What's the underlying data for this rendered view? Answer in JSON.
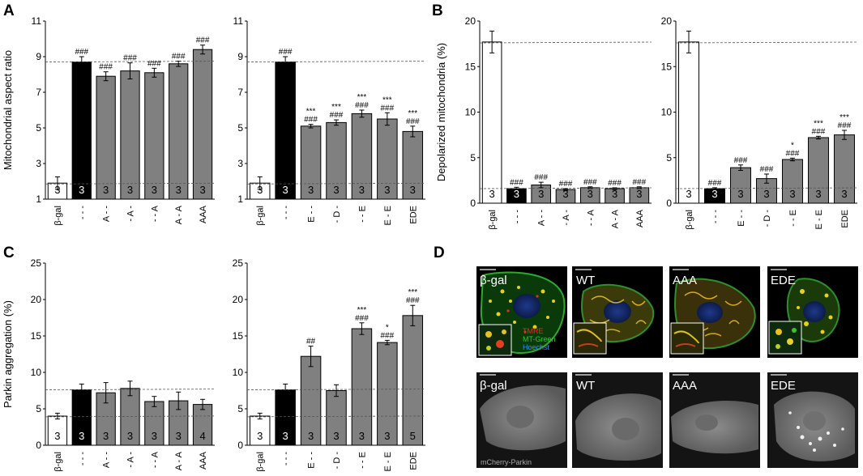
{
  "panel_letters": [
    "A",
    "B",
    "C",
    "D"
  ],
  "chart_data": [
    {
      "type": "bar",
      "panel": "A",
      "ylabel": "Mitochondrial  aspect ratio",
      "ylim": [
        1,
        11
      ],
      "yticks": [
        "1",
        "3",
        "5",
        "7",
        "9",
        "11"
      ],
      "categories": [
        "β-gal",
        "- - -",
        "A - -",
        "- A -",
        "- - A",
        "A - A",
        "AAA"
      ],
      "values": [
        1.9,
        8.7,
        7.9,
        8.2,
        8.1,
        8.6,
        9.4
      ],
      "errors": [
        0.35,
        0.3,
        0.25,
        0.45,
        0.25,
        0.15,
        0.25
      ],
      "fills": [
        "#ffffff",
        "#000000",
        "#808080",
        "#808080",
        "#808080",
        "#808080",
        "#808080"
      ],
      "n": [
        "3",
        "3",
        "3",
        "3",
        "3",
        "3",
        "3"
      ],
      "sig_top": [
        "",
        "",
        "",
        "",
        "",
        "",
        ""
      ],
      "sig_bottom": [
        "",
        "###",
        "###",
        "###",
        "###",
        "###",
        "###"
      ],
      "ref_lines": [
        8.7,
        1.85
      ]
    },
    {
      "type": "bar",
      "panel": "A",
      "ylabel": "",
      "ylim": [
        1,
        11
      ],
      "yticks": [
        "1",
        "3",
        "5",
        "7",
        "9",
        "11"
      ],
      "categories": [
        "β-gal",
        "- - -",
        "E - -",
        "- D -",
        "- - E",
        "E - E",
        "EDE"
      ],
      "values": [
        1.9,
        8.7,
        5.1,
        5.3,
        5.8,
        5.5,
        4.8
      ],
      "errors": [
        0.35,
        0.3,
        0.1,
        0.15,
        0.2,
        0.35,
        0.3
      ],
      "fills": [
        "#ffffff",
        "#000000",
        "#808080",
        "#808080",
        "#808080",
        "#808080",
        "#808080"
      ],
      "n": [
        "3",
        "3",
        "3",
        "3",
        "3",
        "3",
        "3"
      ],
      "sig_top": [
        "",
        "",
        "***",
        "***",
        "***",
        "***",
        "***"
      ],
      "sig_bottom": [
        "",
        "###",
        "###",
        "###",
        "###",
        "###",
        "###"
      ],
      "ref_lines": [
        8.7,
        1.85
      ]
    },
    {
      "type": "bar",
      "panel": "B",
      "ylabel": "Depolarized mitochondria (%)",
      "ylim": [
        0,
        20
      ],
      "yticks": [
        "0",
        "5",
        "10",
        "15",
        "20"
      ],
      "categories": [
        "β-gal",
        "- - -",
        "A - -",
        "- A -",
        "- - A",
        "A - A",
        "AAA"
      ],
      "values": [
        17.7,
        1.6,
        2.0,
        1.5,
        1.7,
        1.6,
        1.7
      ],
      "errors": [
        1.2,
        0.15,
        0.3,
        0.1,
        0.1,
        0.1,
        0.1
      ],
      "fills": [
        "#ffffff",
        "#000000",
        "#808080",
        "#808080",
        "#808080",
        "#808080",
        "#808080"
      ],
      "n": [
        "3",
        "3",
        "3",
        "3",
        "3",
        "3",
        "3"
      ],
      "sig_top": [
        "",
        "",
        "",
        "",
        "",
        "",
        ""
      ],
      "sig_bottom": [
        "",
        "###",
        "###",
        "###",
        "###",
        "###",
        "###"
      ],
      "ref_lines": [
        17.6,
        1.6
      ]
    },
    {
      "type": "bar",
      "panel": "B",
      "ylabel": "",
      "ylim": [
        0,
        20
      ],
      "yticks": [
        "0",
        "5",
        "10",
        "15",
        "20"
      ],
      "categories": [
        "β-gal",
        "- - -",
        "E - -",
        "- D -",
        "- - E",
        "E - E",
        "EDE"
      ],
      "values": [
        17.7,
        1.6,
        3.9,
        2.7,
        4.8,
        7.2,
        7.5
      ],
      "errors": [
        1.2,
        0.1,
        0.3,
        0.5,
        0.15,
        0.15,
        0.5
      ],
      "fills": [
        "#ffffff",
        "#000000",
        "#808080",
        "#808080",
        "#808080",
        "#808080",
        "#808080"
      ],
      "n": [
        "3",
        "3",
        "3",
        "3",
        "3",
        "3",
        "3"
      ],
      "sig_top": [
        "",
        "",
        "",
        "",
        "*",
        "***",
        "***"
      ],
      "sig_bottom": [
        "",
        "###",
        "###",
        "###",
        "###",
        "###",
        "###"
      ],
      "ref_lines": [
        17.6,
        1.6
      ]
    },
    {
      "type": "bar",
      "panel": "C",
      "ylabel": "Parkin aggregation (%)",
      "ylim": [
        0,
        25
      ],
      "yticks": [
        "0",
        "5",
        "10",
        "15",
        "20",
        "25"
      ],
      "categories": [
        "β-gal",
        "- - -",
        "A - -",
        "- A -",
        "- - A",
        "A - A",
        "AAA"
      ],
      "values": [
        4.0,
        7.6,
        7.2,
        7.8,
        6.0,
        6.1,
        5.6
      ],
      "errors": [
        0.4,
        0.8,
        1.4,
        1.0,
        0.7,
        1.2,
        0.7
      ],
      "fills": [
        "#ffffff",
        "#000000",
        "#808080",
        "#808080",
        "#808080",
        "#808080",
        "#808080"
      ],
      "n": [
        "3",
        "3",
        "3",
        "3",
        "3",
        "3",
        "4"
      ],
      "sig_top": [
        "",
        "",
        "",
        "",
        "",
        "",
        ""
      ],
      "sig_bottom": [
        "",
        "",
        "",
        "",
        "",
        "",
        ""
      ],
      "ref_lines": [
        7.6,
        3.9
      ]
    },
    {
      "type": "bar",
      "panel": "C",
      "ylabel": "",
      "ylim": [
        0,
        25
      ],
      "yticks": [
        "0",
        "5",
        "10",
        "15",
        "20",
        "25"
      ],
      "categories": [
        "β-gal",
        "- - -",
        "E - -",
        "- D -",
        "- - E",
        "E - E",
        "EDE"
      ],
      "values": [
        4.0,
        7.6,
        12.2,
        7.5,
        16.0,
        14.1,
        17.8
      ],
      "errors": [
        0.4,
        0.8,
        1.4,
        0.8,
        0.8,
        0.3,
        1.4
      ],
      "fills": [
        "#ffffff",
        "#000000",
        "#808080",
        "#808080",
        "#808080",
        "#808080",
        "#808080"
      ],
      "n": [
        "3",
        "3",
        "3",
        "3",
        "3",
        "3",
        "5"
      ],
      "sig_top": [
        "",
        "",
        "",
        "",
        "***",
        "*",
        "***"
      ],
      "sig_bottom": [
        "",
        "",
        "##",
        "",
        "###",
        "###",
        "###"
      ],
      "ref_lines": [
        7.6,
        3.9
      ]
    }
  ],
  "micrographs": {
    "top_labels": [
      "β-gal",
      "WT",
      "AAA",
      "EDE"
    ],
    "bottom_labels": [
      "β-gal",
      "WT",
      "AAA",
      "EDE"
    ],
    "legend": [
      {
        "text": "TMRE",
        "color": "#ff2020"
      },
      {
        "text": "MT-Green",
        "color": "#20d020"
      },
      {
        "text": "Hoechst",
        "color": "#3090ff"
      }
    ],
    "bottom_caption": "mCherry-Parkin"
  }
}
